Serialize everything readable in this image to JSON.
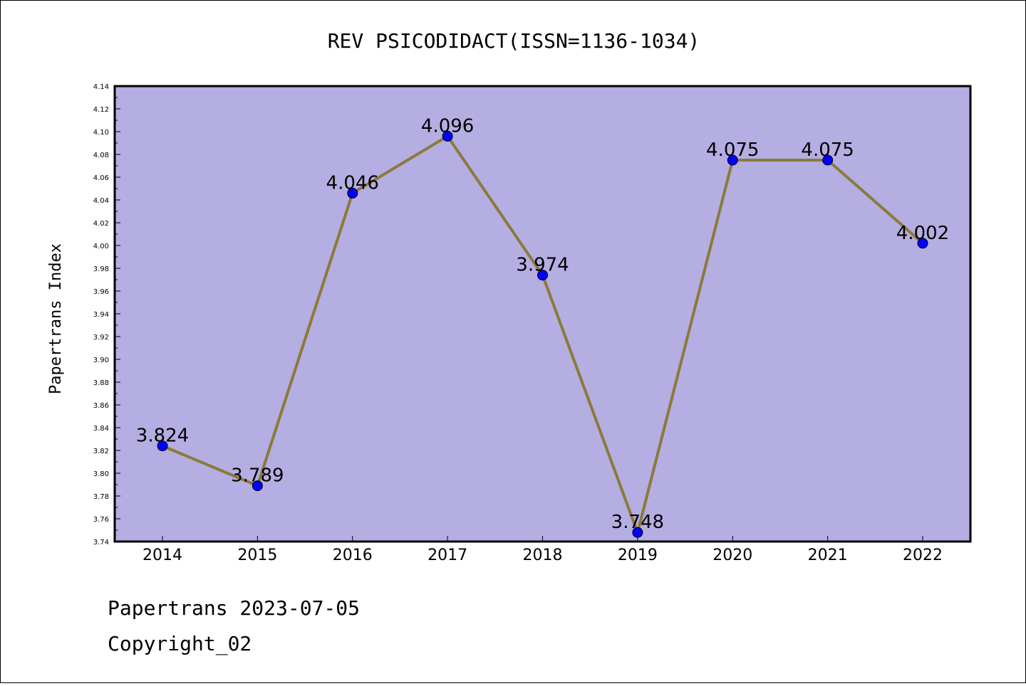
{
  "chart_data": {
    "type": "line",
    "title": "REV PSICODIDACT(ISSN=1136-1034)",
    "xlabel": "",
    "ylabel": "Papertrans Index",
    "categories": [
      "2014",
      "2015",
      "2016",
      "2017",
      "2018",
      "2019",
      "2020",
      "2021",
      "2022"
    ],
    "series": [
      {
        "values": [
          3.824,
          3.789,
          4.046,
          4.096,
          3.974,
          3.748,
          4.075,
          4.075,
          4.002
        ]
      }
    ],
    "data_labels": [
      "3.824",
      "3.789",
      "4.046",
      "4.096",
      "3.974",
      "3.748",
      "4.075",
      "4.075",
      "4.002"
    ],
    "ylim": [
      3.74,
      4.14
    ],
    "yticks": [
      "3.74",
      "3.76",
      "3.78",
      "3.80",
      "3.82",
      "3.84",
      "3.86",
      "3.88",
      "3.90",
      "3.92",
      "3.94",
      "3.96",
      "3.98",
      "4.00",
      "4.02",
      "4.04",
      "4.06",
      "4.08",
      "4.10",
      "4.12",
      "4.14"
    ],
    "grid": false,
    "legend": "none",
    "colors": {
      "plot_background": "#b4aee2",
      "line": "#8b7a3a",
      "marker": "#0000ff"
    }
  },
  "footer": {
    "line1": "Papertrans 2023-07-05",
    "line2": "Copyright_02"
  }
}
